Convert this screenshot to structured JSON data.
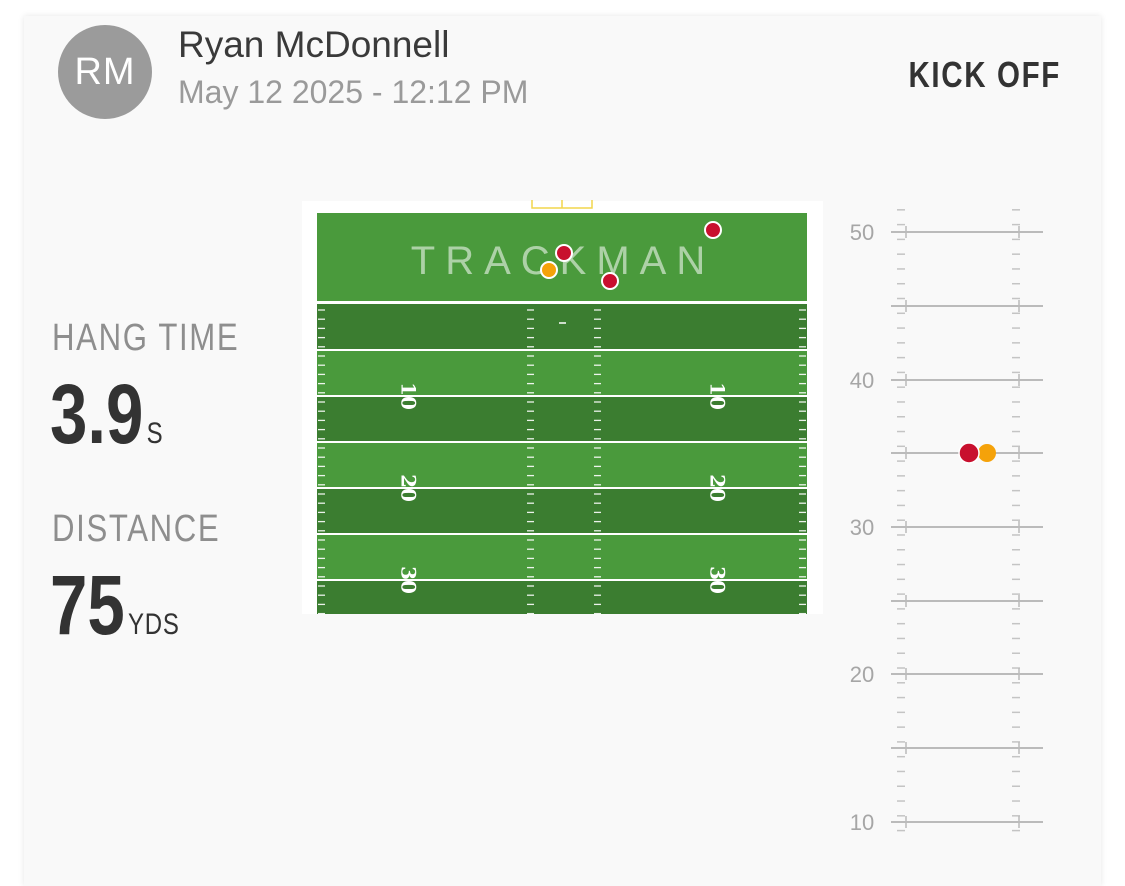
{
  "header": {
    "avatar_initials": "RM",
    "player_name": "Ryan McDonnell",
    "datetime": "May 12 2025 - 12:12 PM",
    "kick_type": "KICK OFF"
  },
  "stats": {
    "hang_time": {
      "label": "HANG TIME",
      "value": "3.9",
      "unit": "S"
    },
    "distance": {
      "label": "DISTANCE",
      "value": "75",
      "unit": "YDS"
    }
  },
  "field": {
    "brand": "TRACKMAN",
    "yard_labels": [
      "10",
      "20",
      "30"
    ],
    "colors": {
      "light_green": "#4a9a3c",
      "dark_green": "#3b7d30",
      "line": "#ffffff",
      "goalpost": "#f2d64b"
    }
  },
  "landing_points": [
    {
      "type": "red",
      "color": "#c8102e"
    },
    {
      "type": "orange",
      "color": "#f5a20a"
    },
    {
      "type": "red",
      "color": "#c8102e"
    },
    {
      "type": "red",
      "color": "#c8102e"
    }
  ],
  "side_scale": {
    "labels": [
      "50",
      "40",
      "30",
      "20",
      "10"
    ],
    "current_kick": {
      "color": "#c8102e"
    },
    "average_kick": {
      "color": "#f5a20a"
    }
  }
}
